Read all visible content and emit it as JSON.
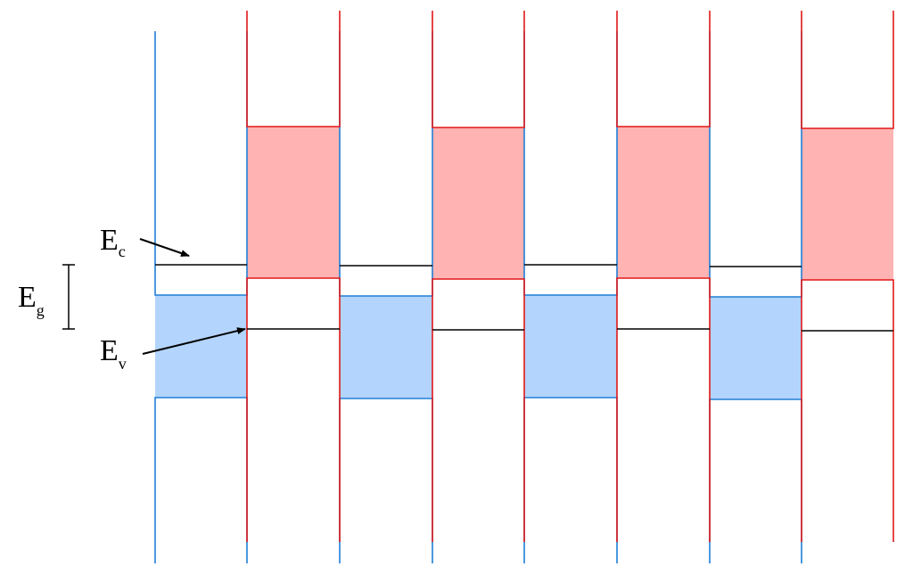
{
  "labels": {
    "ec": {
      "main": "E",
      "sub": "c"
    },
    "eg": {
      "main": "E",
      "sub": "g"
    },
    "ev": {
      "main": "E",
      "sub": "v"
    }
  }
}
